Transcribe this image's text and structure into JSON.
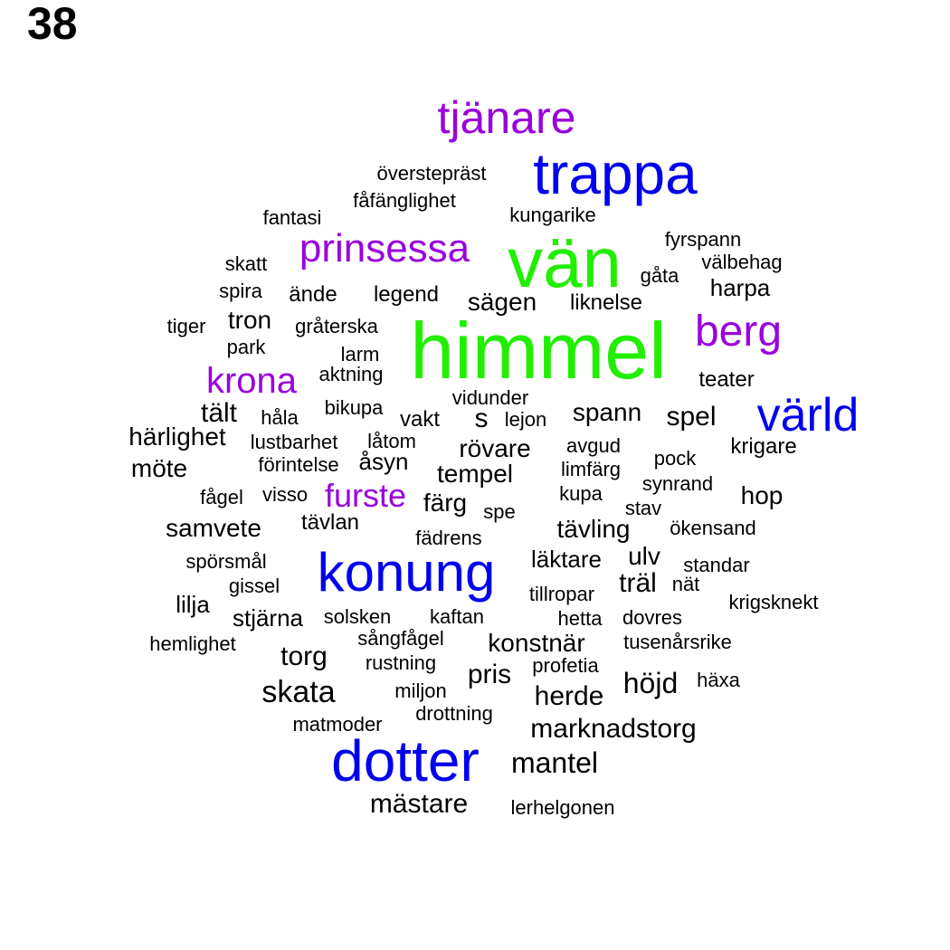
{
  "page_number": "38",
  "colors": {
    "green": "#22ee00",
    "blue": "#0000ee",
    "purple": "#9900dd",
    "black": "#000000"
  },
  "words": [
    {
      "text": "tjänare",
      "color": "purple"
    },
    {
      "text": "trappa",
      "color": "blue"
    },
    {
      "text": "överstepräst",
      "color": "black"
    },
    {
      "text": "fåfänglighet",
      "color": "black"
    },
    {
      "text": "fantasi",
      "color": "black"
    },
    {
      "text": "kungarike",
      "color": "black"
    },
    {
      "text": "vän",
      "color": "green"
    },
    {
      "text": "prinsessa",
      "color": "purple"
    },
    {
      "text": "fyrspann",
      "color": "black"
    },
    {
      "text": "välbehag",
      "color": "black"
    },
    {
      "text": "skatt",
      "color": "black"
    },
    {
      "text": "gåta",
      "color": "black"
    },
    {
      "text": "spira",
      "color": "black"
    },
    {
      "text": "ände",
      "color": "black"
    },
    {
      "text": "legend",
      "color": "black"
    },
    {
      "text": "sägen",
      "color": "black"
    },
    {
      "text": "liknelse",
      "color": "black"
    },
    {
      "text": "harpa",
      "color": "black"
    },
    {
      "text": "tron",
      "color": "black"
    },
    {
      "text": "tiger",
      "color": "black"
    },
    {
      "text": "gråterska",
      "color": "black"
    },
    {
      "text": "himmel",
      "color": "green"
    },
    {
      "text": "berg",
      "color": "purple"
    },
    {
      "text": "park",
      "color": "black"
    },
    {
      "text": "larm",
      "color": "black"
    },
    {
      "text": "krona",
      "color": "purple"
    },
    {
      "text": "aktning",
      "color": "black"
    },
    {
      "text": "teater",
      "color": "black"
    },
    {
      "text": "vidunder",
      "color": "black"
    },
    {
      "text": "tält",
      "color": "black"
    },
    {
      "text": "bikupa",
      "color": "black"
    },
    {
      "text": "s",
      "color": "black"
    },
    {
      "text": "spann",
      "color": "black"
    },
    {
      "text": "värld",
      "color": "blue"
    },
    {
      "text": "håla",
      "color": "black"
    },
    {
      "text": "vakt",
      "color": "black"
    },
    {
      "text": "lejon",
      "color": "black"
    },
    {
      "text": "spel",
      "color": "black"
    },
    {
      "text": "härlighet",
      "color": "black"
    },
    {
      "text": "lustbarhet",
      "color": "black"
    },
    {
      "text": "låtom",
      "color": "black"
    },
    {
      "text": "rövare",
      "color": "black"
    },
    {
      "text": "avgud",
      "color": "black"
    },
    {
      "text": "krigare",
      "color": "black"
    },
    {
      "text": "möte",
      "color": "black"
    },
    {
      "text": "förintelse",
      "color": "black"
    },
    {
      "text": "åsyn",
      "color": "black"
    },
    {
      "text": "tempel",
      "color": "black"
    },
    {
      "text": "limfärg",
      "color": "black"
    },
    {
      "text": "pock",
      "color": "black"
    },
    {
      "text": "synrand",
      "color": "black"
    },
    {
      "text": "fågel",
      "color": "black"
    },
    {
      "text": "visso",
      "color": "black"
    },
    {
      "text": "furste",
      "color": "purple"
    },
    {
      "text": "färg",
      "color": "black"
    },
    {
      "text": "kupa",
      "color": "black"
    },
    {
      "text": "hop",
      "color": "black"
    },
    {
      "text": "spe",
      "color": "black"
    },
    {
      "text": "stav",
      "color": "black"
    },
    {
      "text": "samvete",
      "color": "black"
    },
    {
      "text": "tävlan",
      "color": "black"
    },
    {
      "text": "tävling",
      "color": "black"
    },
    {
      "text": "ökensand",
      "color": "black"
    },
    {
      "text": "fädrens",
      "color": "black"
    },
    {
      "text": "spörsmål",
      "color": "black"
    },
    {
      "text": "konung",
      "color": "blue"
    },
    {
      "text": "läktare",
      "color": "black"
    },
    {
      "text": "ulv",
      "color": "black"
    },
    {
      "text": "standar",
      "color": "black"
    },
    {
      "text": "gissel",
      "color": "black"
    },
    {
      "text": "träl",
      "color": "black"
    },
    {
      "text": "nät",
      "color": "black"
    },
    {
      "text": "tillropar",
      "color": "black"
    },
    {
      "text": "lilja",
      "color": "black"
    },
    {
      "text": "krigsknekt",
      "color": "black"
    },
    {
      "text": "stjärna",
      "color": "black"
    },
    {
      "text": "solsken",
      "color": "black"
    },
    {
      "text": "kaftan",
      "color": "black"
    },
    {
      "text": "hetta",
      "color": "black"
    },
    {
      "text": "dovres",
      "color": "black"
    },
    {
      "text": "hemlighet",
      "color": "black"
    },
    {
      "text": "sångfågel",
      "color": "black"
    },
    {
      "text": "konstnär",
      "color": "black"
    },
    {
      "text": "tusenårsrike",
      "color": "black"
    },
    {
      "text": "torg",
      "color": "black"
    },
    {
      "text": "rustning",
      "color": "black"
    },
    {
      "text": "profetia",
      "color": "black"
    },
    {
      "text": "pris",
      "color": "black"
    },
    {
      "text": "höjd",
      "color": "black"
    },
    {
      "text": "häxa",
      "color": "black"
    },
    {
      "text": "skata",
      "color": "black"
    },
    {
      "text": "miljon",
      "color": "black"
    },
    {
      "text": "herde",
      "color": "black"
    },
    {
      "text": "drottning",
      "color": "black"
    },
    {
      "text": "matmoder",
      "color": "black"
    },
    {
      "text": "marknadstorg",
      "color": "black"
    },
    {
      "text": "dotter",
      "color": "blue"
    },
    {
      "text": "mantel",
      "color": "black"
    },
    {
      "text": "mästare",
      "color": "black"
    },
    {
      "text": "lerhelgonen",
      "color": "black"
    }
  ]
}
